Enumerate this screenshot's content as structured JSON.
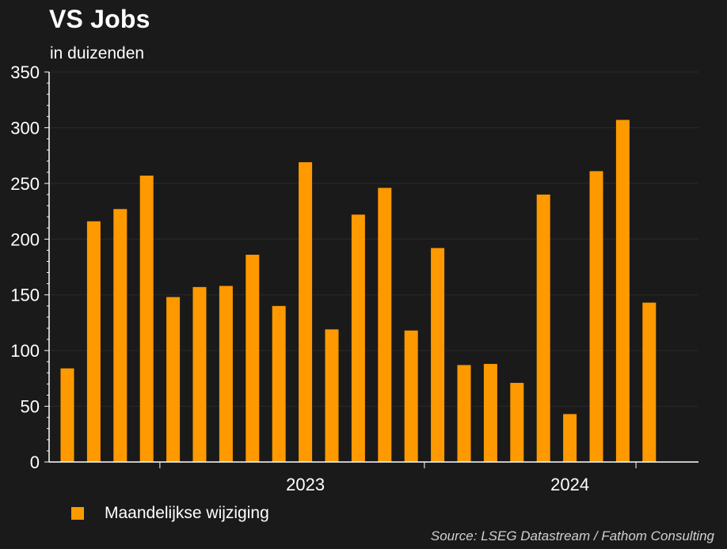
{
  "header": {
    "title": "VS Jobs",
    "subtitle": "in duizenden"
  },
  "legend": {
    "label": "Maandelijkse wijziging"
  },
  "footer": {
    "source": "Source: LSEG Datastream / Fathom Consulting"
  },
  "colors": {
    "background": "#1a1a1a",
    "bar": "#ff9900",
    "axis": "#ffffff",
    "grid": "#2a2a2a"
  },
  "chart_data": {
    "type": "bar",
    "title": "VS Jobs",
    "subtitle": "in duizenden",
    "xlabel": "",
    "ylabel": "",
    "ylim": [
      0,
      350
    ],
    "yticks": [
      0,
      50,
      100,
      150,
      200,
      250,
      300,
      350
    ],
    "x_tick_labels": [
      "2023",
      "2024"
    ],
    "x_label_groups": [
      {
        "label": "2023",
        "start_index": 4,
        "end_index": 14
      },
      {
        "label": "2024",
        "start_index": 15,
        "end_index": 23
      }
    ],
    "grid": true,
    "legend_position": "bottom-left",
    "series": [
      {
        "name": "Maandelijkse wijziging",
        "values": [
          84,
          216,
          227,
          257,
          148,
          157,
          158,
          186,
          140,
          269,
          119,
          222,
          246,
          118,
          192,
          87,
          88,
          71,
          240,
          43,
          261,
          307,
          143
        ]
      }
    ]
  }
}
